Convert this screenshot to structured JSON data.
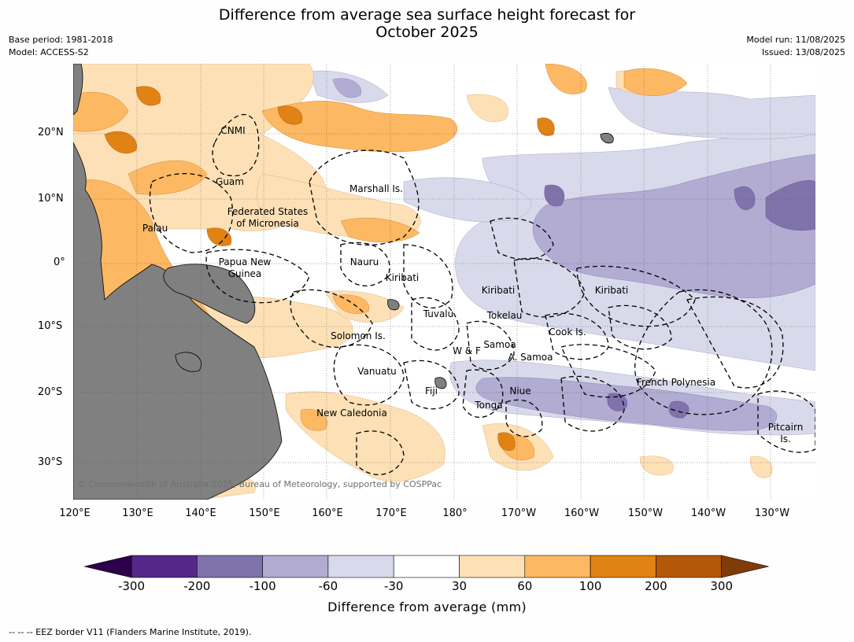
{
  "title_line1": "Difference from average sea surface height forecast for",
  "title_line2": "October 2025",
  "meta": {
    "base_period": "Base period: 1981-2018",
    "model": "Model: ACCESS-S2",
    "model_run": "Model run: 11/08/2025",
    "issued": "Issued: 13/08/2025"
  },
  "lat_labels": [
    "20°N",
    "10°N",
    "0°",
    "10°S",
    "20°S",
    "30°S"
  ],
  "lon_labels": [
    "120°E",
    "130°E",
    "140°E",
    "150°E",
    "160°E",
    "170°E",
    "180°",
    "170°W",
    "160°W",
    "150°W",
    "140°W",
    "130°W"
  ],
  "region_labels": [
    "CNMI",
    "Guam",
    "Marshall Is.",
    "Federated States",
    "of Micronesia",
    "Palau",
    "Nauru",
    "Papua New",
    "Guinea",
    "Kiribati",
    "Kiribati",
    "Kiribati",
    "Tuvalu",
    "Tokelau",
    "Cook Is.",
    "Solomon Is.",
    "W & F",
    "Samoa",
    "A. Samoa",
    "Vanuatu",
    "Fiji",
    "Niue",
    "Tonga",
    "French Polynesia",
    "New Caledonia",
    "Pitcairn",
    "Is."
  ],
  "copyright": "© Commonwealth of Australia 2025, Bureau of Meteorology, supported by COSPPac",
  "colorbar": {
    "title": "Difference from average (mm)",
    "ticks": [
      "-300",
      "-200",
      "-100",
      "-60",
      "-30",
      "30",
      "60",
      "100",
      "200",
      "300"
    ],
    "colors": [
      "#2d004b",
      "#542788",
      "#8073ac",
      "#b2abd2",
      "#d8daeb",
      "#ffffff",
      "#fee0b6",
      "#fdb863",
      "#e08214",
      "#b35806",
      "#7f3b08"
    ]
  },
  "footnote": "--  --  -- EEZ border V11 (Flanders Marine Institute, 2019)."
}
